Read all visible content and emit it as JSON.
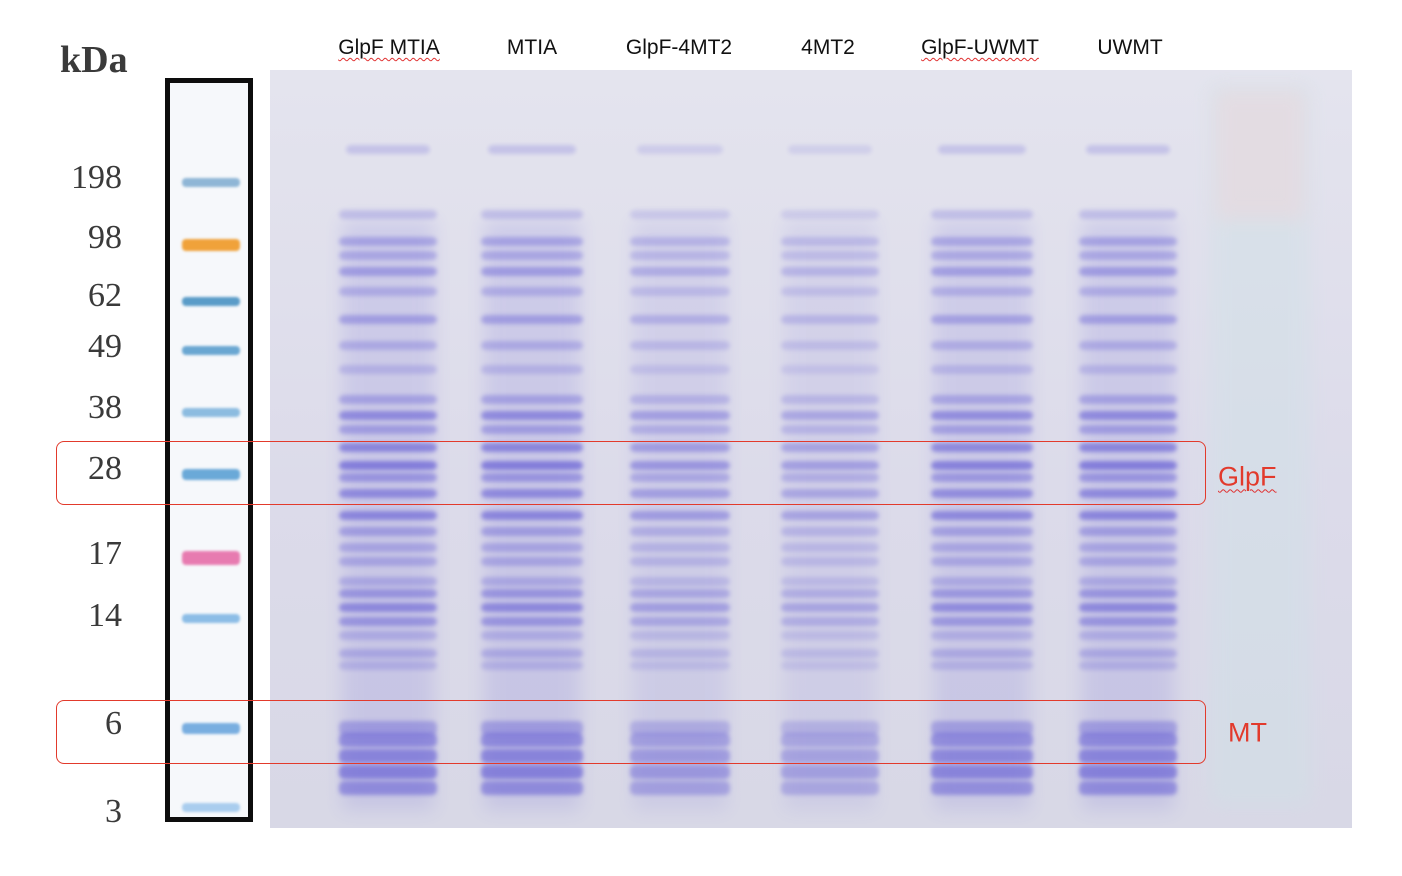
{
  "marker": {
    "unit": "kDa",
    "sizes": [
      {
        "label": "198",
        "color": "#8fb6d6"
      },
      {
        "label": "98",
        "color": "#f0a23a"
      },
      {
        "label": "62",
        "color": "#5a9cc8"
      },
      {
        "label": "49",
        "color": "#6aa7d2"
      },
      {
        "label": "38",
        "color": "#8cbce0"
      },
      {
        "label": "28",
        "color": "#6aa9d8"
      },
      {
        "label": "17",
        "color": "#e77bb0"
      },
      {
        "label": "14",
        "color": "#8cbde6"
      },
      {
        "label": "6",
        "color": "#79aee0"
      },
      {
        "label": "3",
        "color": "#a9cdee"
      }
    ]
  },
  "lanes": [
    {
      "label": "GlpF MTIA"
    },
    {
      "label": "MTIA"
    },
    {
      "label": "GlpF-4MT2"
    },
    {
      "label": "4MT2"
    },
    {
      "label": "GlpF-UWMT"
    },
    {
      "label": "UWMT"
    }
  ],
  "highlights": [
    {
      "label": "GlpF",
      "color": "#e23a2c"
    },
    {
      "label": "MT",
      "color": "#e23a2c"
    }
  ],
  "colors": {
    "stain": "#4a3fd0",
    "gel_background": "#dedeeb"
  }
}
